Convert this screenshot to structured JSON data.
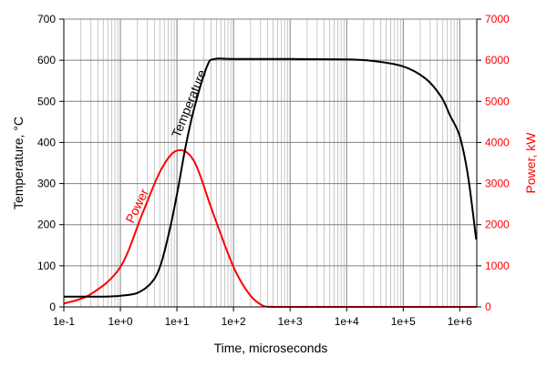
{
  "chart_data": {
    "type": "line",
    "xlabel": "Time, microseconds",
    "ylabel": "Temperature, °C",
    "y2label": "Power, kW",
    "xscale": "log",
    "xlim": [
      0.1,
      2000000
    ],
    "ylim": [
      0,
      700
    ],
    "y2lim": [
      0,
      7000
    ],
    "grid": true,
    "x_tick_labels": [
      "1e-1",
      "1e+0",
      "1e+1",
      "1e+2",
      "1e+3",
      "1e+4",
      "1e+5",
      "1e+6"
    ],
    "y_tick_labels": [
      "0",
      "100",
      "200",
      "300",
      "400",
      "500",
      "600",
      "700"
    ],
    "y2_tick_labels": [
      "0",
      "1000",
      "2000",
      "3000",
      "4000",
      "5000",
      "6000",
      "7000"
    ],
    "series": [
      {
        "name": "Temperature",
        "axis": "left",
        "color": "#000000",
        "x": [
          0.1,
          0.5,
          0.8,
          1,
          2,
          3.6,
          5.2,
          7.6,
          10.5,
          14,
          20,
          34,
          46,
          100,
          1000,
          10000,
          30000,
          100000,
          250000,
          470000,
          670000,
          1000000,
          1400000,
          1950000
        ],
        "y": [
          25,
          25,
          26,
          27,
          34,
          60,
          104,
          193,
          289,
          385,
          481,
          585,
          603,
          603,
          603,
          602,
          598,
          585,
          555,
          511,
          466,
          415,
          318,
          164
        ]
      },
      {
        "name": "Power",
        "axis": "right",
        "color": "#ff0000",
        "x": [
          0.1,
          0.3,
          1,
          2.5,
          5.2,
          10,
          20,
          43,
          100,
          190,
          320,
          500,
          1000,
          2000000
        ],
        "y": [
          80,
          310,
          970,
          2300,
          3330,
          3800,
          3550,
          2300,
          970,
          310,
          40,
          0,
          0,
          0
        ]
      }
    ]
  }
}
